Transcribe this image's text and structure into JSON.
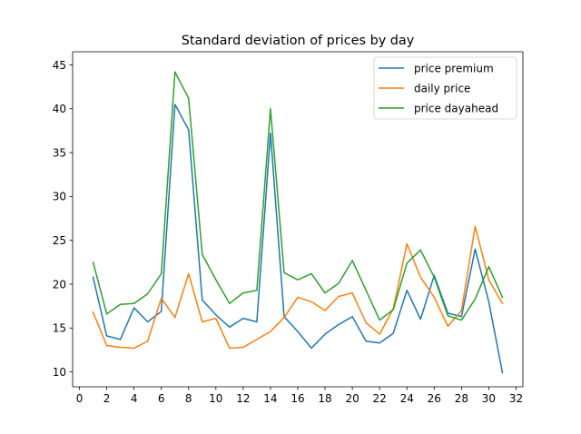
{
  "colors": {
    "price_premium": "#1f77b4",
    "daily_price": "#ff7f0e",
    "price_dayahead": "#2ca02c"
  },
  "chart_data": {
    "type": "line",
    "title": "Standard deviation of prices by day",
    "xlabel": "",
    "ylabel": "",
    "xlim": [
      -0.5,
      32.5
    ],
    "ylim": [
      8.3,
      46.5
    ],
    "xticks": [
      0,
      2,
      4,
      6,
      8,
      10,
      12,
      14,
      16,
      18,
      20,
      22,
      24,
      26,
      28,
      30,
      32
    ],
    "yticks": [
      10,
      15,
      20,
      25,
      30,
      35,
      40,
      45
    ],
    "grid": false,
    "legend_position": "top-right",
    "x": [
      1,
      2,
      3,
      4,
      5,
      6,
      7,
      8,
      9,
      10,
      11,
      12,
      13,
      14,
      15,
      16,
      17,
      18,
      19,
      20,
      21,
      22,
      23,
      24,
      25,
      26,
      27,
      28,
      29,
      30,
      31
    ],
    "series": [
      {
        "name": "price premium",
        "color": "#1f77b4",
        "values": [
          20.8,
          14.1,
          13.7,
          17.3,
          15.7,
          16.9,
          40.5,
          37.6,
          18.2,
          16.5,
          15.1,
          16.1,
          15.7,
          37.2,
          16.3,
          14.6,
          12.7,
          14.3,
          15.4,
          16.3,
          13.5,
          13.3,
          14.4,
          19.3,
          16.0,
          21.0,
          16.7,
          16.3,
          24.0,
          18.0,
          9.9
        ]
      },
      {
        "name": "daily price",
        "color": "#ff7f0e",
        "values": [
          16.8,
          13.0,
          12.8,
          12.7,
          13.5,
          18.4,
          16.2,
          21.2,
          15.7,
          16.1,
          12.7,
          12.8,
          13.7,
          14.6,
          16.2,
          18.5,
          18.0,
          17.0,
          18.6,
          19.0,
          15.6,
          14.3,
          17.2,
          24.6,
          20.8,
          18.5,
          15.2,
          17.0,
          26.6,
          20.5,
          17.8
        ]
      },
      {
        "name": "price dayahead",
        "color": "#2ca02c",
        "values": [
          22.5,
          16.6,
          17.7,
          17.8,
          18.9,
          21.2,
          44.2,
          41.2,
          23.4,
          20.5,
          17.8,
          19.0,
          19.3,
          40.0,
          21.3,
          20.5,
          21.2,
          19.0,
          20.1,
          22.7,
          19.3,
          15.9,
          17.1,
          22.4,
          23.9,
          20.8,
          16.4,
          15.9,
          18.3,
          22.0,
          18.5
        ]
      }
    ]
  }
}
